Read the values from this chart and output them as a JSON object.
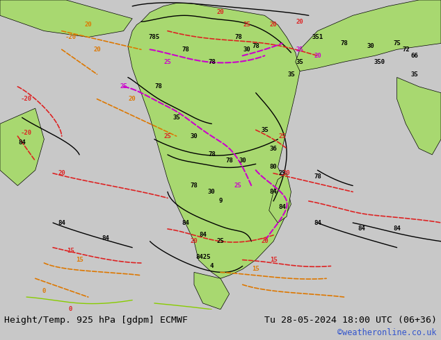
{
  "title_left": "Height/Temp. 925 hPa [gdpm] ECMWF",
  "title_right": "Tu 28-05-2024 18:00 UTC (06+36)",
  "credit": "©weatheronline.co.uk",
  "bg_color": "#c8c8c8",
  "map_area_color": "#c8c8c8",
  "land_green_color": "#a8d870",
  "fig_width": 6.34,
  "fig_height": 4.9,
  "dpi": 100,
  "title_fontsize": 9.5,
  "credit_fontsize": 8.5,
  "credit_color": "#3355cc"
}
